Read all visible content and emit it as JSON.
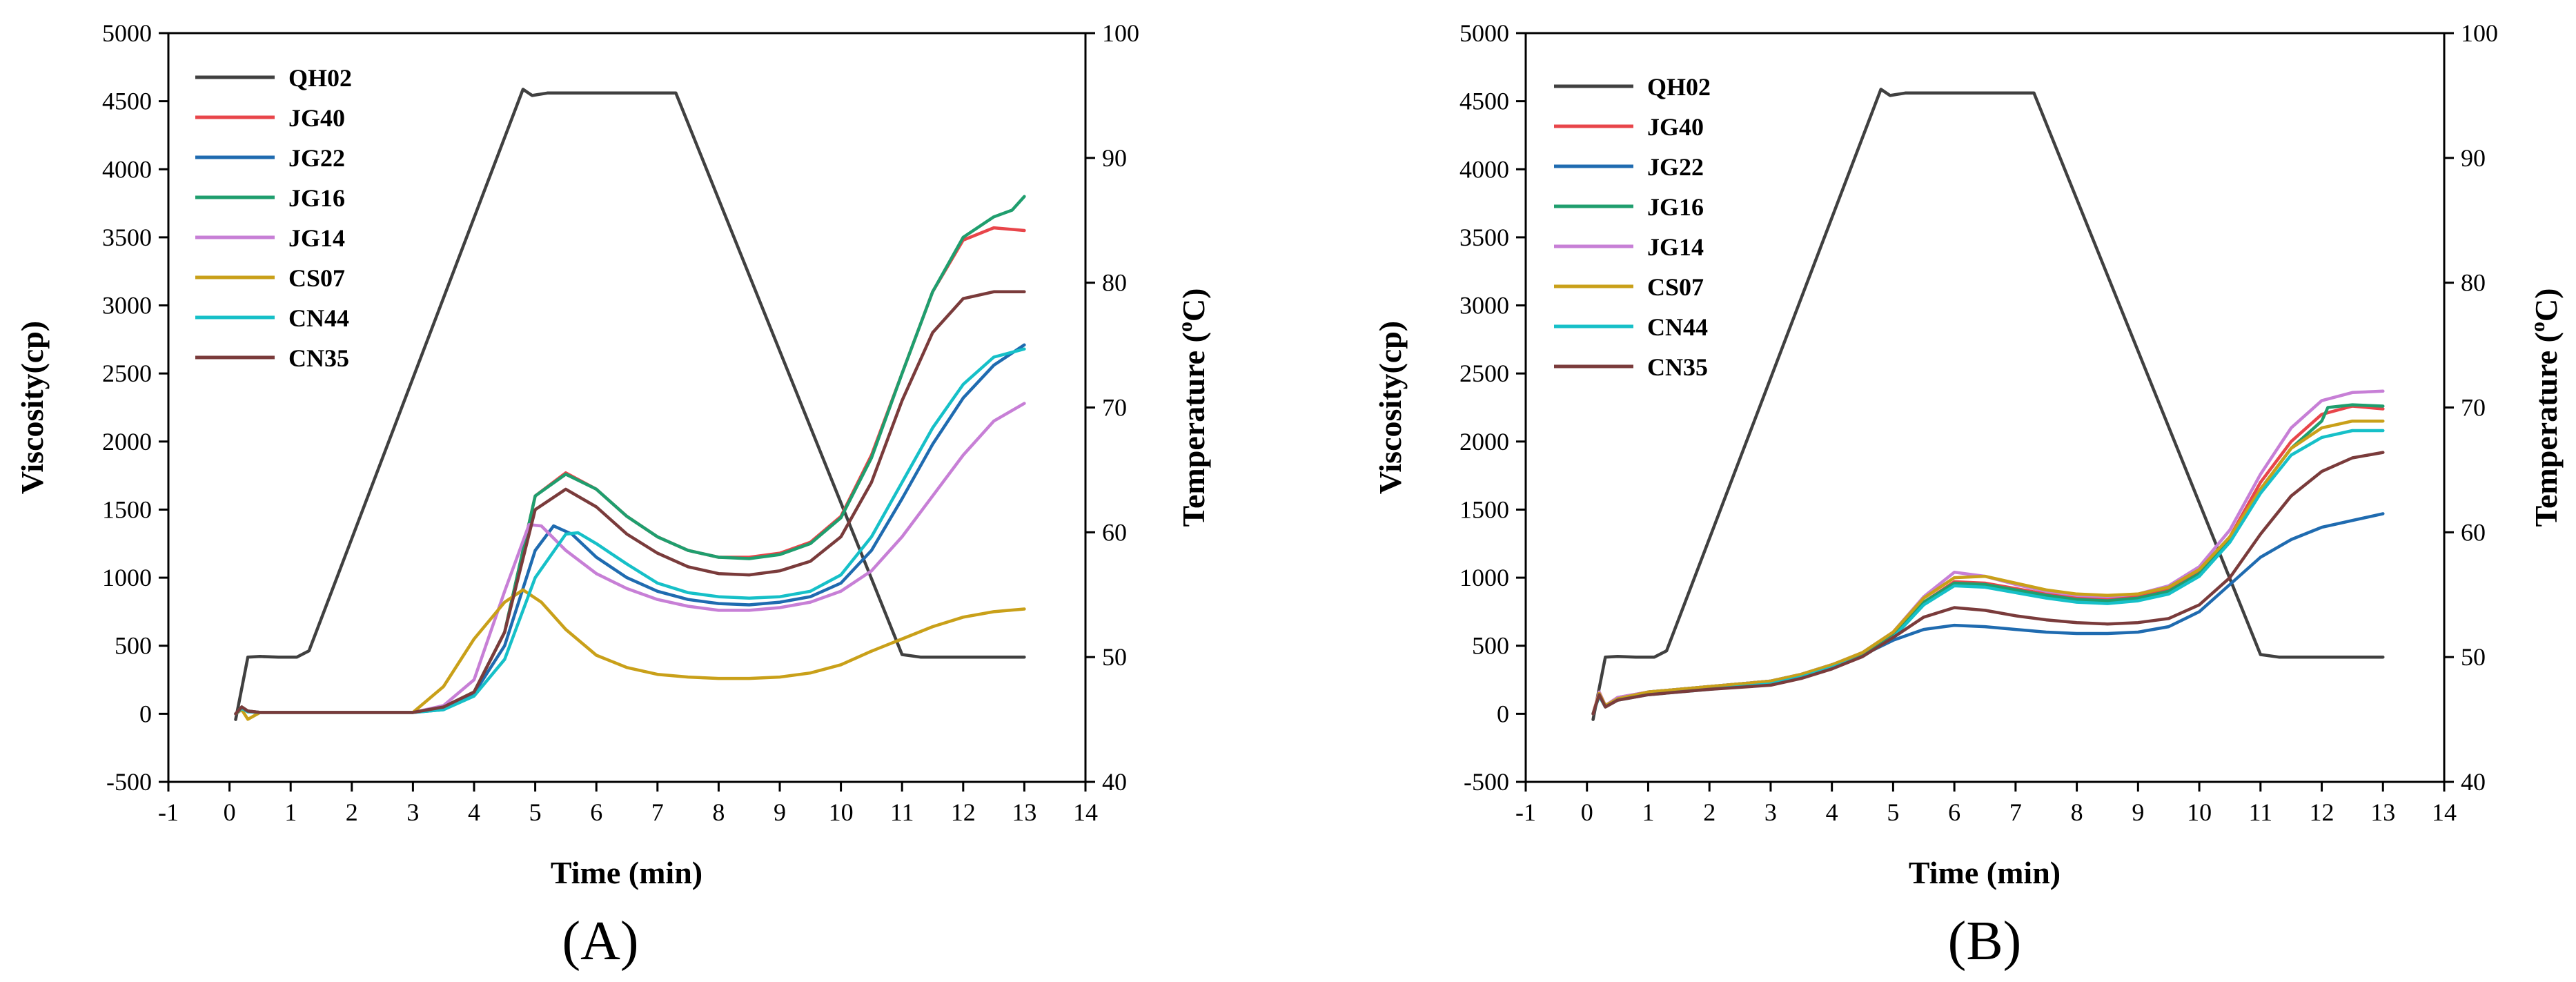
{
  "chart_data": [
    {
      "type": "line",
      "panel_label": "(A)",
      "xlabel": "Time (min)",
      "ylabel": "Viscosity(cp)",
      "y2label_prefix": "Temperature (",
      "y2label_sup": "o",
      "y2label_suffix": "C)",
      "xlim": [
        -1,
        14
      ],
      "ylim": [
        -500,
        5000
      ],
      "y2lim": [
        40,
        100
      ],
      "xticks": [
        "-1",
        "0",
        "1",
        "2",
        "3",
        "4",
        "5",
        "6",
        "7",
        "8",
        "9",
        "10",
        "11",
        "12",
        "13",
        "14"
      ],
      "yticks": [
        "-500",
        "0",
        "500",
        "1000",
        "1500",
        "2000",
        "2500",
        "3000",
        "3500",
        "4000",
        "4500",
        "5000"
      ],
      "y2ticks": [
        "40",
        "50",
        "60",
        "70",
        "80",
        "90",
        "100"
      ],
      "legend_position": "top-left",
      "series": [
        {
          "name": "QH02",
          "color": "#404040",
          "axis": "temperature",
          "x": [
            0.1,
            0.3,
            0.5,
            0.8,
            1.1,
            1.3,
            4.8,
            4.95,
            5.2,
            7.3,
            11.0,
            11.3,
            13.0
          ],
          "y": [
            45.0,
            50.0,
            50.05,
            50.0,
            50.0,
            50.5,
            95.5,
            95.0,
            95.2,
            95.2,
            50.2,
            50.0,
            50.0
          ]
        },
        {
          "name": "JG40",
          "color": "#e8454a",
          "axis": "viscosity",
          "x": [
            0.1,
            0.2,
            0.3,
            0.5,
            1,
            2,
            3,
            3.5,
            4,
            4.5,
            5,
            5.5,
            6,
            6.5,
            7,
            7.5,
            8,
            8.5,
            9,
            9.5,
            10,
            10.5,
            11,
            11.5,
            12,
            12.5,
            13
          ],
          "y": [
            0,
            50,
            20,
            10,
            10,
            10,
            10,
            50,
            160,
            600,
            1600,
            1770,
            1650,
            1450,
            1300,
            1200,
            1150,
            1150,
            1180,
            1260,
            1450,
            1900,
            2500,
            3100,
            3480,
            3570,
            3550
          ]
        },
        {
          "name": "JG22",
          "color": "#1f6bb0",
          "axis": "viscosity",
          "x": [
            0.1,
            0.2,
            0.3,
            0.5,
            1,
            2,
            3,
            3.5,
            4,
            4.5,
            5,
            5.3,
            5.6,
            6,
            6.5,
            7,
            7.5,
            8,
            8.5,
            9,
            9.5,
            10,
            10.5,
            11,
            11.5,
            12,
            12.5,
            13
          ],
          "y": [
            0,
            40,
            15,
            10,
            10,
            10,
            10,
            30,
            150,
            500,
            1200,
            1380,
            1320,
            1150,
            1000,
            900,
            840,
            810,
            800,
            820,
            860,
            960,
            1200,
            1580,
            1980,
            2320,
            2560,
            2710
          ]
        },
        {
          "name": "JG16",
          "color": "#1f9e6e",
          "axis": "viscosity",
          "x": [
            0.1,
            0.2,
            0.3,
            0.5,
            1,
            2,
            3,
            3.5,
            4,
            4.5,
            5,
            5.5,
            6,
            6.5,
            7,
            7.5,
            8,
            8.5,
            9,
            9.5,
            10,
            10.5,
            11,
            11.5,
            12,
            12.5,
            12.8,
            13
          ],
          "y": [
            0,
            50,
            20,
            10,
            10,
            10,
            10,
            50,
            160,
            600,
            1600,
            1760,
            1650,
            1450,
            1300,
            1200,
            1150,
            1140,
            1170,
            1250,
            1440,
            1880,
            2500,
            3100,
            3500,
            3650,
            3700,
            3800
          ]
        },
        {
          "name": "JG14",
          "color": "#c77fd6",
          "axis": "viscosity",
          "x": [
            0.1,
            0.2,
            0.3,
            0.5,
            1,
            2,
            3,
            3.5,
            4,
            4.5,
            4.9,
            5.1,
            5.5,
            6,
            6.5,
            7,
            7.5,
            8,
            8.5,
            9,
            9.5,
            10,
            10.5,
            11,
            11.5,
            12,
            12.5,
            13
          ],
          "y": [
            0,
            40,
            15,
            10,
            10,
            10,
            10,
            60,
            250,
            900,
            1390,
            1380,
            1200,
            1030,
            920,
            840,
            790,
            760,
            760,
            780,
            820,
            900,
            1050,
            1300,
            1600,
            1900,
            2150,
            2280
          ]
        },
        {
          "name": "CS07",
          "color": "#c9a019",
          "axis": "viscosity",
          "x": [
            0.1,
            0.2,
            0.3,
            0.5,
            1,
            2,
            3,
            3.5,
            4,
            4.5,
            4.8,
            5.1,
            5.5,
            6,
            6.5,
            7,
            7.5,
            8,
            8.5,
            9,
            9.5,
            10,
            10.5,
            11,
            11.5,
            12,
            12.5,
            13
          ],
          "y": [
            0,
            30,
            -40,
            10,
            10,
            10,
            10,
            200,
            550,
            820,
            910,
            820,
            620,
            430,
            340,
            290,
            270,
            260,
            260,
            270,
            300,
            360,
            460,
            550,
            640,
            710,
            750,
            770
          ]
        },
        {
          "name": "CN44",
          "color": "#16c0c8",
          "axis": "viscosity",
          "x": [
            0.1,
            0.2,
            0.3,
            0.5,
            1,
            2,
            3,
            3.5,
            4,
            4.5,
            5,
            5.5,
            5.7,
            6,
            6.5,
            7,
            7.5,
            8,
            8.5,
            9,
            9.5,
            10,
            10.5,
            11,
            11.5,
            12,
            12.5,
            13
          ],
          "y": [
            0,
            40,
            15,
            10,
            10,
            10,
            10,
            30,
            130,
            400,
            1000,
            1320,
            1330,
            1250,
            1100,
            960,
            890,
            860,
            850,
            860,
            900,
            1020,
            1300,
            1700,
            2100,
            2420,
            2620,
            2680
          ]
        },
        {
          "name": "CN35",
          "color": "#7a3b3b",
          "axis": "viscosity",
          "x": [
            0.1,
            0.2,
            0.3,
            0.5,
            1,
            2,
            3,
            3.5,
            4,
            4.5,
            5,
            5.5,
            6,
            6.5,
            7,
            7.5,
            8,
            8.5,
            9,
            9.5,
            10,
            10.5,
            11,
            11.5,
            12,
            12.5,
            13
          ],
          "y": [
            0,
            50,
            20,
            10,
            10,
            10,
            10,
            50,
            160,
            600,
            1500,
            1650,
            1520,
            1320,
            1180,
            1080,
            1030,
            1020,
            1050,
            1120,
            1300,
            1700,
            2300,
            2800,
            3050,
            3100,
            3100
          ]
        }
      ]
    },
    {
      "type": "line",
      "panel_label": "(B)",
      "xlabel": "Time (min)",
      "ylabel": "Viscosity(cp)",
      "y2label_prefix": "Temperature (",
      "y2label_sup": "o",
      "y2label_suffix": "C)",
      "xlim": [
        -1,
        14
      ],
      "ylim": [
        -500,
        5000
      ],
      "y2lim": [
        40,
        100
      ],
      "xticks": [
        "-1",
        "0",
        "1",
        "2",
        "3",
        "4",
        "5",
        "6",
        "7",
        "8",
        "9",
        "10",
        "11",
        "12",
        "13",
        "14"
      ],
      "yticks": [
        "-500",
        "0",
        "500",
        "1000",
        "1500",
        "2000",
        "2500",
        "3000",
        "3500",
        "4000",
        "4500",
        "5000"
      ],
      "y2ticks": [
        "40",
        "50",
        "60",
        "70",
        "80",
        "90",
        "100"
      ],
      "legend_position": "top-left",
      "series": [
        {
          "name": "QH02",
          "color": "#404040",
          "axis": "temperature",
          "x": [
            0.1,
            0.3,
            0.5,
            0.8,
            1.1,
            1.3,
            4.8,
            4.95,
            5.2,
            7.3,
            11.0,
            11.3,
            13.0
          ],
          "y": [
            45.0,
            50.0,
            50.05,
            50.0,
            50.0,
            50.5,
            95.5,
            95.0,
            95.2,
            95.2,
            50.2,
            50.0,
            50.0
          ]
        },
        {
          "name": "JG40",
          "color": "#e8454a",
          "axis": "viscosity",
          "x": [
            0.1,
            0.2,
            0.3,
            0.5,
            1,
            2,
            3,
            3.5,
            4,
            4.5,
            5,
            5.5,
            6,
            6.5,
            7,
            7.5,
            8,
            8.5,
            9,
            9.5,
            10,
            10.5,
            11,
            11.5,
            12,
            12.5,
            13
          ],
          "y": [
            0,
            160,
            60,
            120,
            160,
            200,
            240,
            290,
            360,
            440,
            580,
            820,
            970,
            960,
            920,
            880,
            850,
            850,
            860,
            910,
            1040,
            1300,
            1700,
            2000,
            2200,
            2260,
            2240
          ]
        },
        {
          "name": "JG22",
          "color": "#1f6bb0",
          "axis": "viscosity",
          "x": [
            0.1,
            0.2,
            0.3,
            0.5,
            1,
            2,
            3,
            3.5,
            4,
            4.5,
            5,
            5.5,
            6,
            6.5,
            7,
            7.5,
            8,
            8.5,
            9,
            9.5,
            10,
            10.5,
            11,
            11.5,
            12,
            12.5,
            13
          ],
          "y": [
            0,
            150,
            60,
            110,
            160,
            200,
            240,
            290,
            360,
            430,
            540,
            620,
            650,
            640,
            620,
            600,
            590,
            590,
            600,
            640,
            750,
            950,
            1150,
            1280,
            1370,
            1420,
            1470
          ]
        },
        {
          "name": "JG16",
          "color": "#1f9e6e",
          "axis": "viscosity",
          "x": [
            0.1,
            0.2,
            0.3,
            0.5,
            1,
            2,
            3,
            3.5,
            4,
            4.5,
            5,
            5.5,
            6,
            6.5,
            7,
            7.5,
            8,
            8.5,
            9,
            9.5,
            10,
            10.5,
            11,
            11.5,
            12,
            12.1,
            12.5,
            13
          ],
          "y": [
            0,
            150,
            60,
            110,
            160,
            200,
            240,
            290,
            360,
            440,
            590,
            820,
            960,
            950,
            910,
            870,
            840,
            830,
            850,
            900,
            1030,
            1280,
            1650,
            1950,
            2150,
            2250,
            2270,
            2260
          ]
        },
        {
          "name": "JG14",
          "color": "#c77fd6",
          "axis": "viscosity",
          "x": [
            0.1,
            0.2,
            0.3,
            0.5,
            1,
            2,
            3,
            3.5,
            4,
            4.5,
            5,
            5.5,
            6,
            6.5,
            7,
            7.5,
            8,
            8.5,
            9,
            9.5,
            10,
            10.5,
            11,
            11.5,
            12,
            12.5,
            13
          ],
          "y": [
            0,
            160,
            60,
            120,
            160,
            200,
            240,
            290,
            360,
            450,
            600,
            860,
            1040,
            1010,
            950,
            900,
            870,
            860,
            880,
            940,
            1080,
            1350,
            1760,
            2100,
            2300,
            2360,
            2370
          ]
        },
        {
          "name": "CS07",
          "color": "#c9a019",
          "axis": "viscosity",
          "x": [
            0.1,
            0.2,
            0.3,
            0.5,
            1,
            2,
            3,
            3.5,
            4,
            4.5,
            5,
            5.5,
            6,
            6.5,
            7,
            7.5,
            8,
            8.5,
            9,
            9.5,
            10,
            10.5,
            11,
            11.5,
            12,
            12.5,
            13
          ],
          "y": [
            0,
            150,
            60,
            110,
            160,
            200,
            240,
            290,
            360,
            450,
            600,
            850,
            1000,
            1010,
            960,
            910,
            880,
            870,
            880,
            930,
            1060,
            1300,
            1650,
            1950,
            2100,
            2150,
            2150
          ]
        },
        {
          "name": "CN44",
          "color": "#16c0c8",
          "axis": "viscosity",
          "x": [
            0.1,
            0.2,
            0.3,
            0.5,
            1,
            2,
            3,
            3.5,
            4,
            4.5,
            5,
            5.5,
            6,
            6.5,
            7,
            7.5,
            8,
            8.5,
            9,
            9.5,
            10,
            10.5,
            11,
            11.5,
            12,
            12.5,
            13
          ],
          "y": [
            0,
            130,
            50,
            100,
            140,
            180,
            220,
            270,
            340,
            420,
            560,
            800,
            940,
            930,
            890,
            850,
            820,
            810,
            830,
            880,
            1010,
            1260,
            1620,
            1900,
            2030,
            2080,
            2080
          ]
        },
        {
          "name": "CN35",
          "color": "#7a3b3b",
          "axis": "viscosity",
          "x": [
            0.1,
            0.2,
            0.3,
            0.5,
            1,
            2,
            3,
            3.5,
            4,
            4.5,
            5,
            5.5,
            6,
            6.5,
            7,
            7.5,
            8,
            8.5,
            9,
            9.5,
            10,
            10.5,
            11,
            11.5,
            12,
            12.5,
            13
          ],
          "y": [
            0,
            140,
            50,
            100,
            140,
            180,
            210,
            260,
            330,
            420,
            560,
            710,
            780,
            760,
            720,
            690,
            670,
            660,
            670,
            700,
            800,
            1000,
            1320,
            1600,
            1780,
            1880,
            1920
          ]
        }
      ]
    }
  ]
}
